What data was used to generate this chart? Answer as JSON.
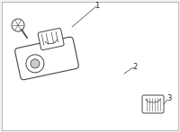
{
  "background_color": "#f2f2f2",
  "border_color": "#bbbbbb",
  "highlight_color": "#3bbfcf",
  "line_color": "#444444",
  "outline_color": "#777777",
  "label1": "1",
  "label2": "2",
  "label3": "3",
  "fig_width": 2.0,
  "fig_height": 1.47,
  "dpi": 100
}
